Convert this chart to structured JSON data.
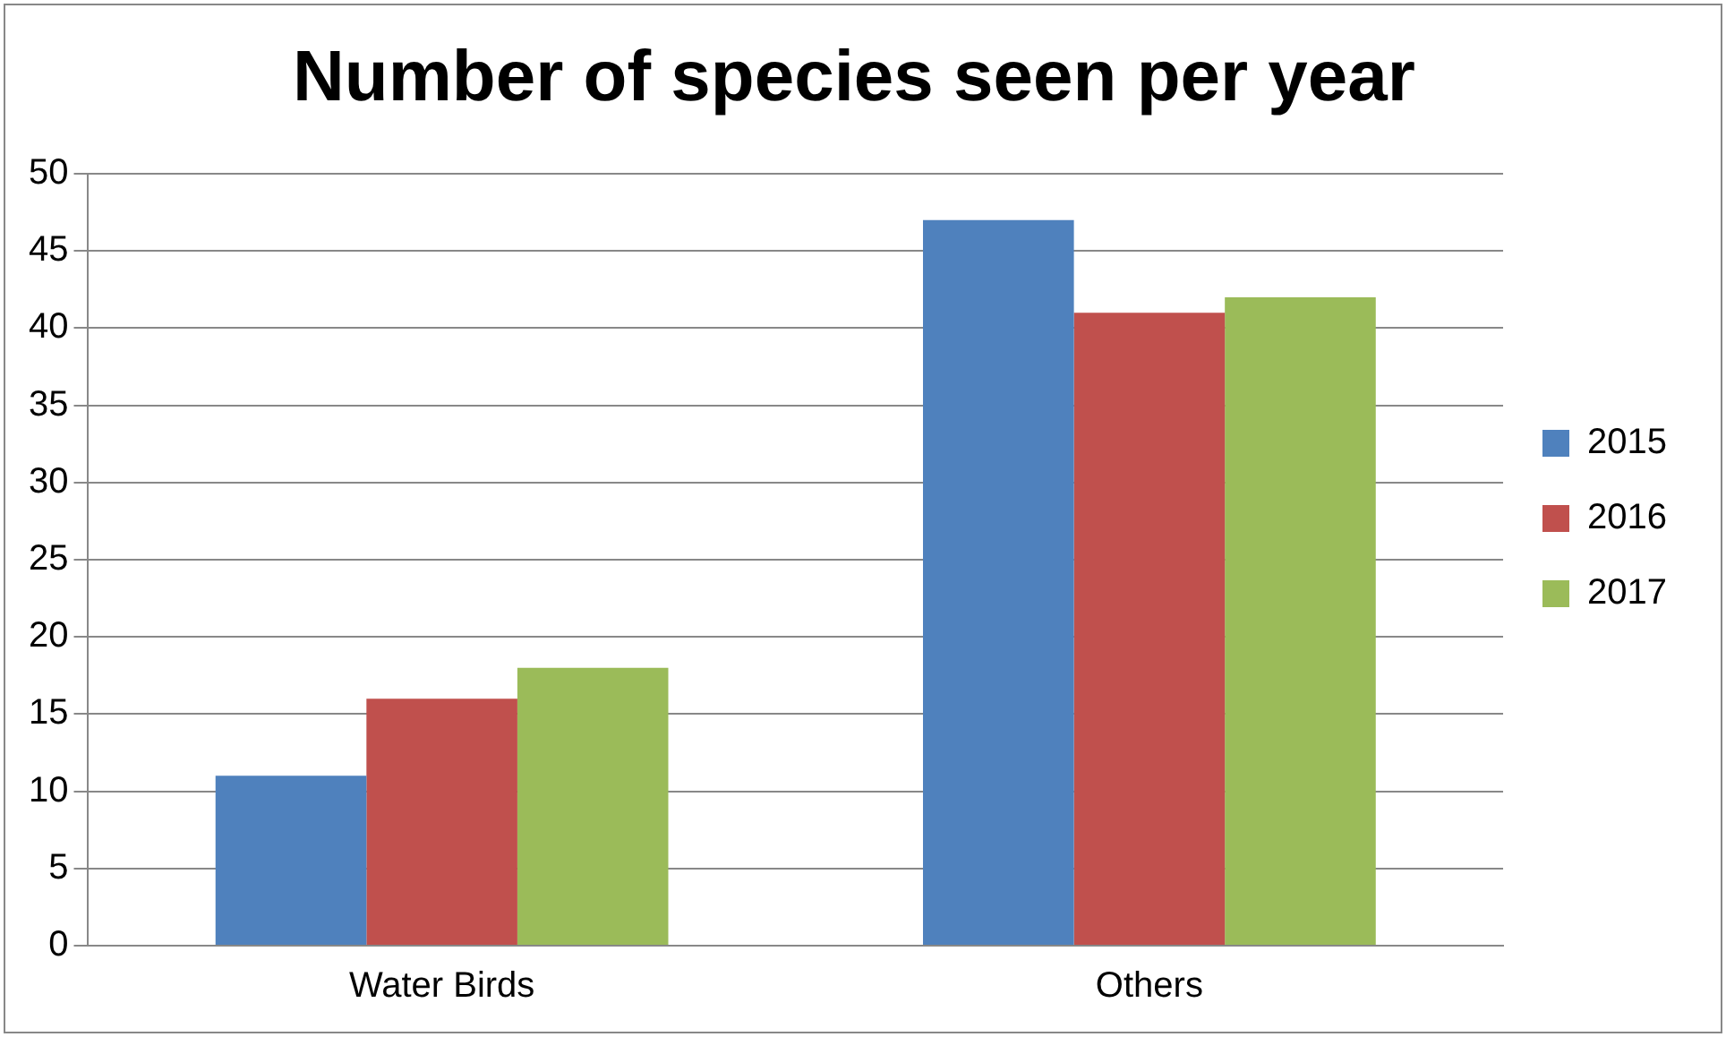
{
  "chart_data": {
    "type": "bar",
    "title": "Number of species seen per year",
    "categories": [
      "Water Birds",
      "Others"
    ],
    "series": [
      {
        "name": "2015",
        "color": "#4f81bd",
        "values": [
          11,
          47
        ]
      },
      {
        "name": "2016",
        "color": "#c0504d",
        "values": [
          16,
          41
        ]
      },
      {
        "name": "2017",
        "color": "#9bbb59",
        "values": [
          18,
          42
        ]
      }
    ],
    "ylim": [
      0,
      50
    ],
    "yticks": [
      0,
      5,
      10,
      15,
      20,
      25,
      30,
      35,
      40,
      45,
      50
    ],
    "grid": "y",
    "legend": "right"
  }
}
